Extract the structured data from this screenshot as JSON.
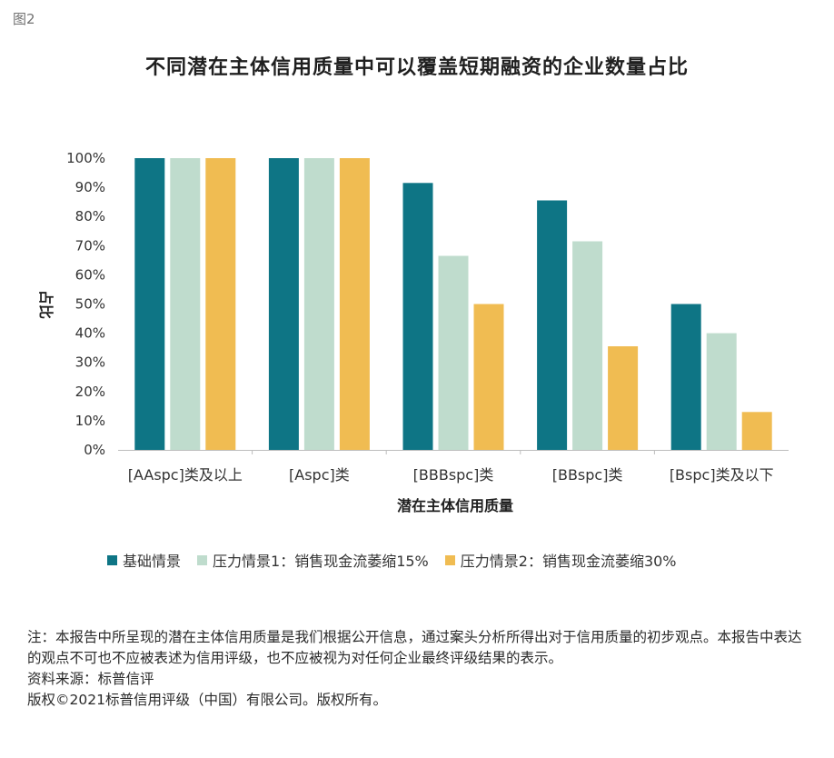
{
  "figure_label": "图2",
  "chart_data": {
    "type": "bar",
    "title": "不同潜在主体信用质量中可以覆盖短期融资的企业数量占比",
    "xlabel": "潜在主体信用质量",
    "ylabel": "占比",
    "ylim": [
      0,
      100
    ],
    "yticks": [
      "0%",
      "10%",
      "20%",
      "30%",
      "40%",
      "50%",
      "60%",
      "70%",
      "80%",
      "90%",
      "100%"
    ],
    "categories": [
      "[AAspc]类及以上",
      "[Aspc]类",
      "[BBBspc]类",
      "[BBspc]类",
      "[Bspc]类及以下"
    ],
    "series": [
      {
        "name": "基础情景",
        "color": "#0e7585",
        "values": [
          100,
          100,
          91.5,
          85.5,
          50
        ]
      },
      {
        "name": "压力情景1：销售现金流萎缩15%",
        "color": "#bfdccd",
        "values": [
          100,
          100,
          66.5,
          71.5,
          40
        ]
      },
      {
        "name": "压力情景2：销售现金流萎缩30%",
        "color": "#f0bc52",
        "values": [
          100,
          100,
          50,
          35.5,
          13
        ]
      }
    ],
    "grid": false,
    "legend_position": "bottom"
  },
  "notes": {
    "disclaimer": "注：本报告中所呈现的潜在主体信用质量是我们根据公开信息，通过案头分析所得出对于信用质量的初步观点。本报告中表达的观点不可也不应被表述为信用评级，也不应被视为对任何企业最终评级结果的表示。",
    "source": "资料来源：标普信评",
    "copyright": "版权©2021标普信用评级（中国）有限公司。版权所有。"
  }
}
